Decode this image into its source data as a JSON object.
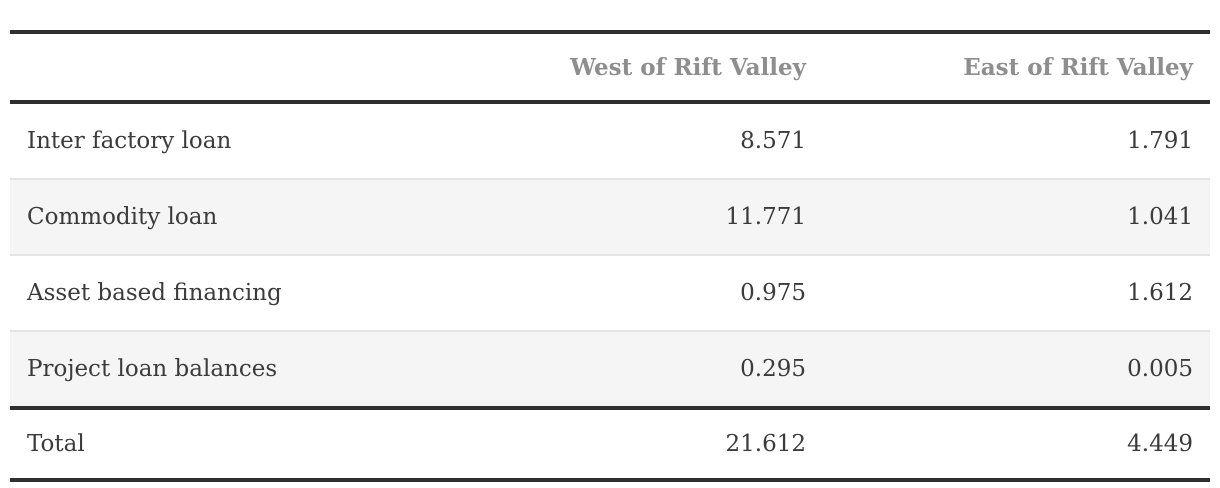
{
  "table": {
    "columns": [
      {
        "key": "label",
        "label": ""
      },
      {
        "key": "west",
        "label": "West of Rift Valley"
      },
      {
        "key": "east",
        "label": "East of Rift Valley"
      }
    ],
    "rows": [
      {
        "label": "Inter factory loan",
        "west": "8.571",
        "east": "1.791"
      },
      {
        "label": "Commodity loan",
        "west": "11.771",
        "east": "1.041"
      },
      {
        "label": "Asset based financing",
        "west": "0.975",
        "east": "1.612"
      },
      {
        "label": "Project loan balances",
        "west": "0.295",
        "east": "0.005"
      }
    ],
    "total_row": {
      "label": "Total",
      "west": "21.612",
      "east": "4.449"
    }
  },
  "chart_data": {
    "type": "table",
    "categories": [
      "Inter factory loan",
      "Commodity loan",
      "Asset based financing",
      "Project loan balances",
      "Total"
    ],
    "series": [
      {
        "name": "West of Rift Valley",
        "values": [
          8.571,
          11.771,
          0.975,
          0.295,
          21.612
        ]
      },
      {
        "name": "East of Rift Valley",
        "values": [
          1.791,
          1.041,
          1.612,
          0.005,
          4.449
        ]
      }
    ],
    "title": "",
    "xlabel": "",
    "ylabel": ""
  },
  "colors": {
    "heavy_rule": "#2e2e2e",
    "row_divider": "#e4e4e4",
    "row_stripe": "#f5f5f6",
    "header_text": "#8e8e8e",
    "body_text": "#3b3b3b",
    "background": "#ffffff"
  }
}
